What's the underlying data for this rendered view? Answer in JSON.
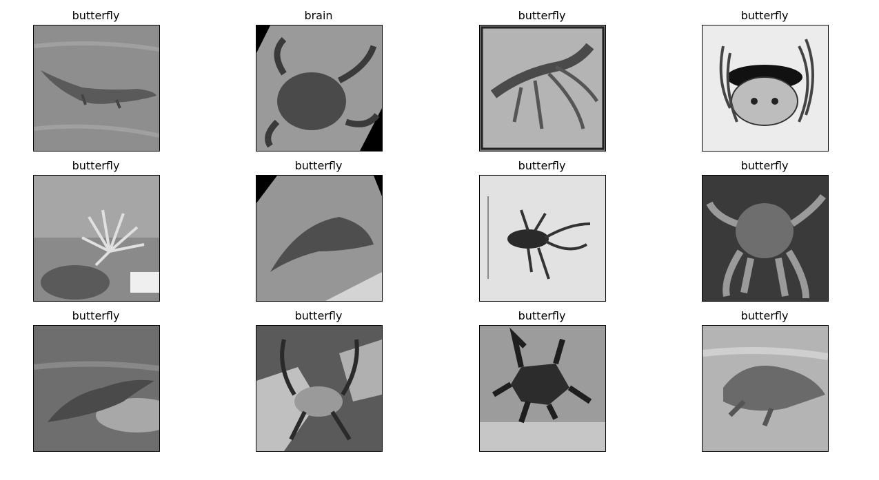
{
  "figure": {
    "panels": [
      {
        "title": "butterfly",
        "subject": "crocodile-in-water",
        "tone": "gray"
      },
      {
        "title": "brain",
        "subject": "crab-rotated",
        "tone": "gray"
      },
      {
        "title": "butterfly",
        "subject": "crayfish-in-frame",
        "tone": "gray"
      },
      {
        "title": "butterfly",
        "subject": "crab-sketch",
        "tone": "light"
      },
      {
        "title": "butterfly",
        "subject": "sea-anemone",
        "tone": "gray"
      },
      {
        "title": "butterfly",
        "subject": "animal-on-gravel-rotated",
        "tone": "gray"
      },
      {
        "title": "butterfly",
        "subject": "crayfish-on-paper",
        "tone": "light"
      },
      {
        "title": "butterfly",
        "subject": "crab-dark-background",
        "tone": "dark"
      },
      {
        "title": "butterfly",
        "subject": "crocodile-on-rock",
        "tone": "gray"
      },
      {
        "title": "butterfly",
        "subject": "crab-on-rocks",
        "tone": "gray"
      },
      {
        "title": "butterfly",
        "subject": "origami-crab",
        "tone": "gray"
      },
      {
        "title": "butterfly",
        "subject": "crocodile-on-sand",
        "tone": "light"
      }
    ]
  }
}
